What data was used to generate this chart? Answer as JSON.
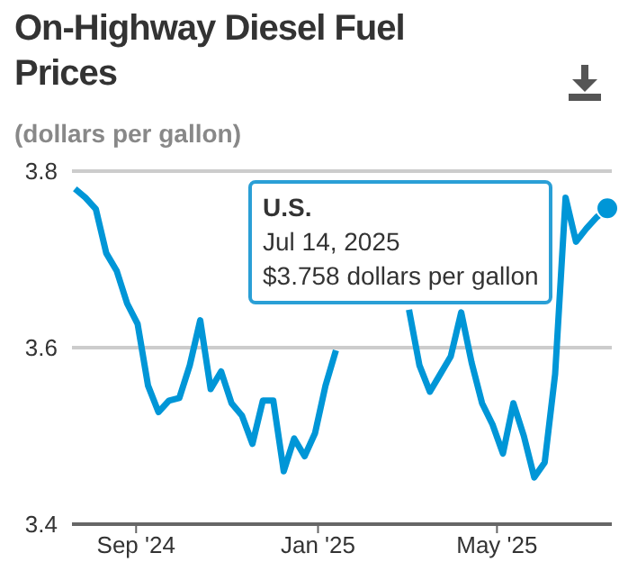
{
  "chart_data": {
    "type": "line",
    "title": "On-Highway Diesel Fuel Prices",
    "subtitle": "(dollars per gallon)",
    "x": [
      "2024-07-22",
      "2024-07-29",
      "2024-08-05",
      "2024-08-12",
      "2024-08-19",
      "2024-08-26",
      "2024-09-02",
      "2024-09-09",
      "2024-09-16",
      "2024-09-23",
      "2024-09-30",
      "2024-10-07",
      "2024-10-14",
      "2024-10-21",
      "2024-10-28",
      "2024-11-04",
      "2024-11-11",
      "2024-11-18",
      "2024-11-25",
      "2024-12-02",
      "2024-12-09",
      "2024-12-16",
      "2024-12-23",
      "2024-12-30",
      "2025-01-06",
      "2025-01-13",
      "2025-01-20",
      "2025-01-27",
      "2025-02-03",
      "2025-02-10",
      "2025-02-17",
      "2025-02-24",
      "2025-03-03",
      "2025-03-10",
      "2025-03-17",
      "2025-03-24",
      "2025-03-31",
      "2025-04-07",
      "2025-04-14",
      "2025-04-21",
      "2025-04-28",
      "2025-05-05",
      "2025-05-12",
      "2025-05-19",
      "2025-05-26",
      "2025-06-02",
      "2025-06-09",
      "2025-06-16",
      "2025-06-23",
      "2025-06-30",
      "2025-07-07",
      "2025-07-14"
    ],
    "series": [
      {
        "color": "#0096d7",
        "values": [
          3.78,
          3.77,
          3.757,
          3.707,
          3.687,
          3.65,
          3.627,
          3.557,
          3.527,
          3.54,
          3.543,
          3.58,
          3.631,
          3.553,
          3.573,
          3.537,
          3.523,
          3.491,
          3.54,
          3.54,
          3.46,
          3.497,
          3.477,
          3.503,
          3.557,
          3.597,
          null,
          null,
          null,
          null,
          null,
          null,
          3.643,
          3.58,
          3.55,
          3.57,
          3.59,
          3.64,
          3.583,
          3.537,
          3.513,
          3.48,
          3.537,
          3.5,
          3.453,
          3.47,
          3.57,
          3.77,
          3.72,
          3.735,
          3.748,
          3.758
        ]
      }
    ],
    "xlim": [
      "2024-07-20",
      "2025-07-17"
    ],
    "xticks": [
      {
        "value": "2024-09-01",
        "label": "Sep '24"
      },
      {
        "value": "2025-01-01",
        "label": "Jan '25"
      },
      {
        "value": "2025-05-01",
        "label": "May '25"
      }
    ],
    "ylim": [
      3.4,
      3.8
    ],
    "yticks": [
      3.4,
      3.6,
      3.8
    ],
    "grid": "y",
    "marker": "none",
    "line_style": "solid",
    "annotations": [
      {
        "text": "U.S.\nJul 14, 2025\n$3.758 dollars per gallon",
        "x": "2025-07-14",
        "y": 3.758
      }
    ]
  }
}
